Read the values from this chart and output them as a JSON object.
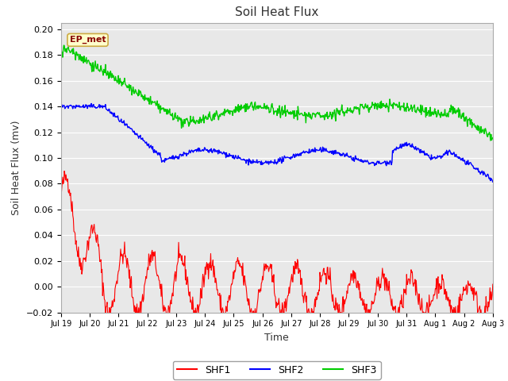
{
  "title": "Soil Heat Flux",
  "xlabel": "Time",
  "ylabel": "Soil Heat Flux (mv)",
  "annotation": "EP_met",
  "ylim": [
    -0.02,
    0.205
  ],
  "yticks": [
    -0.02,
    0.0,
    0.02,
    0.04,
    0.06,
    0.08,
    0.1,
    0.12,
    0.14,
    0.16,
    0.18,
    0.2
  ],
  "xtick_labels": [
    "Jul 19",
    "Jul 20",
    "Jul 21",
    "Jul 22",
    "Jul 23",
    "Jul 24",
    "Jul 25",
    "Jul 26",
    "Jul 27",
    "Jul 28",
    "Jul 29",
    "Jul 30",
    "Jul 31",
    "Aug 1",
    "Aug 2",
    "Aug 3"
  ],
  "color_shf1": "#ff0000",
  "color_shf2": "#0000ff",
  "color_shf3": "#00cc00",
  "legend_labels": [
    "SHF1",
    "SHF2",
    "SHF3"
  ],
  "plot_bg_color": "#e8e8e8",
  "fig_bg_color": "#ffffff",
  "grid_color": "#ffffff",
  "annotation_bg": "#ffffcc",
  "annotation_border": "#ccaa44"
}
